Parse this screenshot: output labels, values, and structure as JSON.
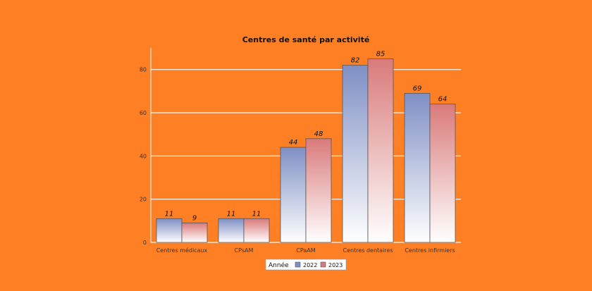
{
  "chart_data": {
    "type": "bar",
    "title": "Centres de santé par activité",
    "xlabel": "",
    "ylabel": "",
    "categories": [
      "Centres médicaux",
      "CPsAM",
      "CPaAM",
      "Centres dentaires",
      "Centres infirmiers"
    ],
    "series": [
      {
        "name": "2022",
        "values": [
          11,
          11,
          44,
          82,
          69
        ],
        "color": "#7f8fc4"
      },
      {
        "name": "2023",
        "values": [
          9,
          11,
          48,
          85,
          64
        ],
        "color": "#d97a7a"
      }
    ],
    "ylim": [
      0,
      90
    ],
    "yticks": [
      0,
      20,
      40,
      60,
      80
    ],
    "grid": true,
    "legend": {
      "title": "Année",
      "placement": "bottom-center"
    },
    "background_color": "#ff7f24"
  }
}
